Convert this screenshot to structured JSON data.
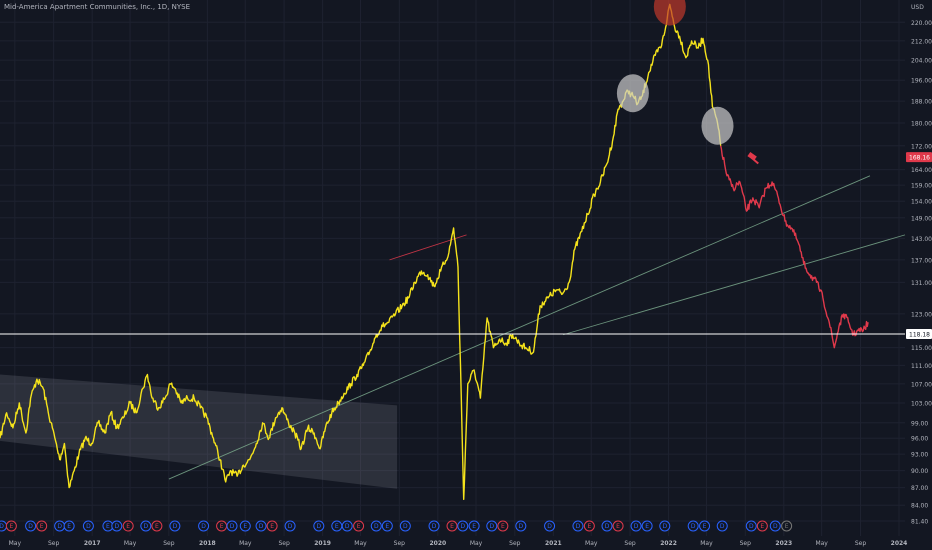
{
  "chart_data": {
    "type": "line",
    "title": "Mid-America Apartment Communities, Inc., 1D, NYSE",
    "currency": "USD",
    "y_scale": "log",
    "ylim": [
      79.0,
      230.0
    ],
    "xlim": [
      "2016-03-15",
      "2024-01-20"
    ],
    "y_ticks": [
      "220.00",
      "212.00",
      "204.00",
      "196.00",
      "188.00",
      "180.00",
      "172.00",
      "164.00",
      "159.00",
      "154.00",
      "149.00",
      "143.00",
      "137.00",
      "131.00",
      "123.00",
      "115.00",
      "111.00",
      "107.00",
      "103.00",
      "99.00",
      "96.00",
      "93.00",
      "90.00",
      "87.00",
      "84.00",
      "81.40"
    ],
    "x_ticks": [
      {
        "label": "May",
        "date": "2016-05-01"
      },
      {
        "label": "Sep",
        "date": "2016-09-01"
      },
      {
        "label": "2017",
        "date": "2017-01-01"
      },
      {
        "label": "May",
        "date": "2017-05-01"
      },
      {
        "label": "Sep",
        "date": "2017-09-01"
      },
      {
        "label": "2018",
        "date": "2018-01-01"
      },
      {
        "label": "May",
        "date": "2018-05-01"
      },
      {
        "label": "Sep",
        "date": "2018-09-01"
      },
      {
        "label": "2019",
        "date": "2019-01-01"
      },
      {
        "label": "May",
        "date": "2019-05-01"
      },
      {
        "label": "Sep",
        "date": "2019-09-01"
      },
      {
        "label": "2020",
        "date": "2020-01-01"
      },
      {
        "label": "May",
        "date": "2020-05-01"
      },
      {
        "label": "Sep",
        "date": "2020-09-01"
      },
      {
        "label": "2021",
        "date": "2021-01-01"
      },
      {
        "label": "May",
        "date": "2021-05-01"
      },
      {
        "label": "Sep",
        "date": "2021-09-01"
      },
      {
        "label": "2022",
        "date": "2022-01-01"
      },
      {
        "label": "May",
        "date": "2022-05-01"
      },
      {
        "label": "Sep",
        "date": "2022-09-01"
      },
      {
        "label": "2023",
        "date": "2023-01-01"
      },
      {
        "label": "May",
        "date": "2023-05-01"
      },
      {
        "label": "Sep",
        "date": "2023-09-01"
      },
      {
        "label": "2024",
        "date": "2024-01-01"
      }
    ],
    "series": [
      {
        "color": "#f5e31b",
        "points": [
          [
            "2016-03-15",
            96
          ],
          [
            "2016-04-05",
            101
          ],
          [
            "2016-04-25",
            98
          ],
          [
            "2016-05-15",
            103
          ],
          [
            "2016-06-05",
            97
          ],
          [
            "2016-06-20",
            104
          ],
          [
            "2016-07-10",
            108
          ],
          [
            "2016-07-30",
            106
          ],
          [
            "2016-08-15",
            101
          ],
          [
            "2016-09-05",
            96
          ],
          [
            "2016-09-20",
            92
          ],
          [
            "2016-10-05",
            95
          ],
          [
            "2016-10-20",
            87
          ],
          [
            "2016-11-05",
            90
          ],
          [
            "2016-11-20",
            93
          ],
          [
            "2016-12-10",
            96
          ],
          [
            "2016-12-30",
            95
          ],
          [
            "2017-01-20",
            99
          ],
          [
            "2017-02-10",
            97
          ],
          [
            "2017-03-01",
            101
          ],
          [
            "2017-03-20",
            98
          ],
          [
            "2017-04-10",
            100
          ],
          [
            "2017-05-01",
            103
          ],
          [
            "2017-05-20",
            101
          ],
          [
            "2017-06-10",
            106
          ],
          [
            "2017-06-25",
            109
          ],
          [
            "2017-07-10",
            104
          ],
          [
            "2017-07-30",
            102
          ],
          [
            "2017-08-20",
            104
          ],
          [
            "2017-09-05",
            107
          ],
          [
            "2017-09-20",
            106
          ],
          [
            "2017-10-10",
            103
          ],
          [
            "2017-10-30",
            104
          ],
          [
            "2017-11-20",
            104
          ],
          [
            "2017-12-10",
            102
          ],
          [
            "2017-12-30",
            100
          ],
          [
            "2018-01-20",
            96
          ],
          [
            "2018-02-10",
            92
          ],
          [
            "2018-02-28",
            88
          ],
          [
            "2018-03-15",
            90
          ],
          [
            "2018-04-05",
            89
          ],
          [
            "2018-04-25",
            91
          ],
          [
            "2018-05-15",
            92
          ],
          [
            "2018-06-05",
            95
          ],
          [
            "2018-06-25",
            99
          ],
          [
            "2018-07-15",
            96
          ],
          [
            "2018-08-05",
            100
          ],
          [
            "2018-08-25",
            102
          ],
          [
            "2018-09-15",
            99
          ],
          [
            "2018-10-05",
            97
          ],
          [
            "2018-10-25",
            94
          ],
          [
            "2018-11-15",
            98
          ],
          [
            "2018-12-05",
            97
          ],
          [
            "2018-12-24",
            94
          ],
          [
            "2019-01-10",
            98
          ],
          [
            "2019-01-30",
            101
          ],
          [
            "2019-02-20",
            103
          ],
          [
            "2019-03-10",
            105
          ],
          [
            "2019-04-01",
            107
          ],
          [
            "2019-04-20",
            109
          ],
          [
            "2019-05-10",
            111
          ],
          [
            "2019-05-30",
            114
          ],
          [
            "2019-06-20",
            118
          ],
          [
            "2019-07-10",
            120
          ],
          [
            "2019-07-30",
            121
          ],
          [
            "2019-08-20",
            123
          ],
          [
            "2019-09-10",
            125
          ],
          [
            "2019-09-30",
            127
          ],
          [
            "2019-10-20",
            131
          ],
          [
            "2019-11-10",
            134
          ],
          [
            "2019-11-30",
            133
          ],
          [
            "2019-12-20",
            130
          ],
          [
            "2020-01-10",
            134
          ],
          [
            "2020-02-05",
            139
          ],
          [
            "2020-02-20",
            146
          ],
          [
            "2020-03-05",
            135
          ],
          [
            "2020-03-23",
            85
          ],
          [
            "2020-04-05",
            107
          ],
          [
            "2020-04-25",
            110
          ],
          [
            "2020-05-15",
            104
          ],
          [
            "2020-06-05",
            122
          ],
          [
            "2020-06-25",
            115
          ],
          [
            "2020-07-15",
            117
          ],
          [
            "2020-08-05",
            116
          ],
          [
            "2020-08-25",
            118
          ],
          [
            "2020-09-15",
            116
          ],
          [
            "2020-10-05",
            115
          ],
          [
            "2020-10-30",
            114
          ],
          [
            "2020-11-20",
            125
          ],
          [
            "2020-12-15",
            127
          ],
          [
            "2021-01-10",
            129
          ],
          [
            "2021-01-30",
            128
          ],
          [
            "2021-02-20",
            131
          ],
          [
            "2021-03-10",
            140
          ],
          [
            "2021-04-01",
            145
          ],
          [
            "2021-04-20",
            150
          ],
          [
            "2021-05-10",
            156
          ],
          [
            "2021-05-30",
            160
          ],
          [
            "2021-06-20",
            166
          ],
          [
            "2021-07-10",
            175
          ],
          [
            "2021-07-25",
            185
          ],
          [
            "2021-08-10",
            188
          ],
          [
            "2021-08-25",
            192
          ],
          [
            "2021-09-10",
            190
          ],
          [
            "2021-09-25",
            187
          ],
          [
            "2021-10-10",
            190
          ],
          [
            "2021-10-30",
            199
          ],
          [
            "2021-11-20",
            206
          ],
          [
            "2021-12-10",
            210
          ],
          [
            "2021-12-28",
            222
          ],
          [
            "2022-01-05",
            228
          ],
          [
            "2022-01-20",
            218
          ],
          [
            "2022-02-05",
            214
          ],
          [
            "2022-02-25",
            205
          ],
          [
            "2022-03-15",
            212
          ],
          [
            "2022-04-05",
            209
          ],
          [
            "2022-04-20",
            213
          ],
          [
            "2022-05-05",
            204
          ],
          [
            "2022-05-20",
            186
          ],
          [
            "2022-06-05",
            180
          ],
          [
            "2022-06-15",
            172
          ]
        ]
      },
      {
        "color": "#e0394b",
        "points": [
          [
            "2022-06-15",
            172
          ],
          [
            "2022-07-05",
            162
          ],
          [
            "2022-07-25",
            158
          ],
          [
            "2022-08-15",
            160
          ],
          [
            "2022-09-05",
            151
          ],
          [
            "2022-09-25",
            155
          ],
          [
            "2022-10-15",
            152
          ],
          [
            "2022-11-05",
            158
          ],
          [
            "2022-11-25",
            160
          ],
          [
            "2022-12-15",
            155
          ],
          [
            "2023-01-05",
            148
          ],
          [
            "2023-01-25",
            146
          ],
          [
            "2023-02-15",
            142
          ],
          [
            "2023-03-05",
            136
          ],
          [
            "2023-03-25",
            133
          ],
          [
            "2023-04-15",
            131
          ],
          [
            "2023-05-05",
            127
          ],
          [
            "2023-05-25",
            121
          ],
          [
            "2023-06-10",
            115
          ],
          [
            "2023-06-25",
            120
          ],
          [
            "2023-07-10",
            123
          ],
          [
            "2023-07-25",
            121
          ],
          [
            "2023-08-10",
            118
          ],
          [
            "2023-08-25",
            119
          ],
          [
            "2023-09-10",
            119
          ],
          [
            "2023-09-25",
            121
          ]
        ]
      }
    ],
    "price_labels": [
      {
        "text": "168.16",
        "value": 168.16,
        "color": "#e0394b"
      },
      {
        "text": "118.18",
        "value": 118.18,
        "color": "#ffffff"
      }
    ],
    "horizontal_line": {
      "value": 118.18,
      "color": "#ffffff"
    },
    "trend_lines": [
      {
        "from": [
          "2017-09-01",
          88.5
        ],
        "to": [
          "2023-10-01",
          162
        ],
        "color": "#7aa88c"
      },
      {
        "from": [
          "2021-02-01",
          118
        ],
        "to": [
          "2024-01-20",
          144
        ],
        "color": "#7aa88c"
      },
      {
        "from": [
          "2019-08-01",
          137
        ],
        "to": [
          "2020-04-01",
          144
        ],
        "color": "#e0394b"
      }
    ],
    "channel_polygon": [
      [
        "2016-03-15",
        109
      ],
      [
        "2019-08-25",
        102.5
      ],
      [
        "2019-08-25",
        86.8
      ],
      [
        "2016-03-15",
        95.5
      ]
    ],
    "circles": [
      {
        "center": [
          "2022-01-05",
          227
        ],
        "color": "#c0392b"
      },
      {
        "center": [
          "2021-09-10",
          191
        ],
        "color": "#cccccc"
      },
      {
        "center": [
          "2022-06-05",
          179
        ],
        "color": "#cccccc"
      }
    ],
    "events": [
      {
        "date": "2016-03-20",
        "label": "D",
        "color": "#2962ff"
      },
      {
        "date": "2016-04-20",
        "label": "E",
        "color": "#e0394b"
      },
      {
        "date": "2016-06-20",
        "label": "D",
        "color": "#2962ff"
      },
      {
        "date": "2016-07-25",
        "label": "E",
        "color": "#e0394b"
      },
      {
        "date": "2016-09-20",
        "label": "D",
        "color": "#2962ff"
      },
      {
        "date": "2016-10-20",
        "label": "E",
        "color": "#2962ff"
      },
      {
        "date": "2016-12-20",
        "label": "D",
        "color": "#2962ff"
      },
      {
        "date": "2017-02-20",
        "label": "E",
        "color": "#2962ff"
      },
      {
        "date": "2017-03-20",
        "label": "D",
        "color": "#2962ff"
      },
      {
        "date": "2017-04-25",
        "label": "E",
        "color": "#e0394b"
      },
      {
        "date": "2017-06-20",
        "label": "D",
        "color": "#2962ff"
      },
      {
        "date": "2017-07-25",
        "label": "E",
        "color": "#e0394b"
      },
      {
        "date": "2017-09-20",
        "label": "D",
        "color": "#2962ff"
      },
      {
        "date": "2017-12-20",
        "label": "D",
        "color": "#2962ff"
      },
      {
        "date": "2018-02-15",
        "label": "E",
        "color": "#e0394b"
      },
      {
        "date": "2018-03-20",
        "label": "D",
        "color": "#2962ff"
      },
      {
        "date": "2018-05-01",
        "label": "E",
        "color": "#2962ff"
      },
      {
        "date": "2018-06-20",
        "label": "D",
        "color": "#2962ff"
      },
      {
        "date": "2018-07-25",
        "label": "E",
        "color": "#e0394b"
      },
      {
        "date": "2018-09-20",
        "label": "D",
        "color": "#2962ff"
      },
      {
        "date": "2018-12-20",
        "label": "D",
        "color": "#2962ff"
      },
      {
        "date": "2019-02-15",
        "label": "E",
        "color": "#2962ff"
      },
      {
        "date": "2019-03-20",
        "label": "D",
        "color": "#2962ff"
      },
      {
        "date": "2019-04-25",
        "label": "E",
        "color": "#e0394b"
      },
      {
        "date": "2019-06-20",
        "label": "D",
        "color": "#2962ff"
      },
      {
        "date": "2019-07-25",
        "label": "E",
        "color": "#2962ff"
      },
      {
        "date": "2019-09-20",
        "label": "D",
        "color": "#2962ff"
      },
      {
        "date": "2019-12-20",
        "label": "D",
        "color": "#2962ff"
      },
      {
        "date": "2020-02-15",
        "label": "E",
        "color": "#e0394b"
      },
      {
        "date": "2020-03-20",
        "label": "D",
        "color": "#2962ff"
      },
      {
        "date": "2020-04-25",
        "label": "E",
        "color": "#2962ff"
      },
      {
        "date": "2020-06-20",
        "label": "D",
        "color": "#2962ff"
      },
      {
        "date": "2020-07-25",
        "label": "E",
        "color": "#e0394b"
      },
      {
        "date": "2020-09-20",
        "label": "D",
        "color": "#2962ff"
      },
      {
        "date": "2020-12-20",
        "label": "D",
        "color": "#2962ff"
      },
      {
        "date": "2021-03-20",
        "label": "D",
        "color": "#2962ff"
      },
      {
        "date": "2021-04-25",
        "label": "E",
        "color": "#e0394b"
      },
      {
        "date": "2021-06-20",
        "label": "D",
        "color": "#2962ff"
      },
      {
        "date": "2021-07-25",
        "label": "E",
        "color": "#e0394b"
      },
      {
        "date": "2021-09-20",
        "label": "D",
        "color": "#2962ff"
      },
      {
        "date": "2021-10-25",
        "label": "E",
        "color": "#2962ff"
      },
      {
        "date": "2021-12-20",
        "label": "D",
        "color": "#2962ff"
      },
      {
        "date": "2022-03-20",
        "label": "D",
        "color": "#2962ff"
      },
      {
        "date": "2022-04-25",
        "label": "E",
        "color": "#2962ff"
      },
      {
        "date": "2022-06-20",
        "label": "D",
        "color": "#2962ff"
      },
      {
        "date": "2022-09-20",
        "label": "D",
        "color": "#2962ff"
      },
      {
        "date": "2022-10-25",
        "label": "E",
        "color": "#e0394b"
      },
      {
        "date": "2022-12-05",
        "label": "D",
        "color": "#2962ff"
      },
      {
        "date": "2023-01-10",
        "label": "E",
        "color": "#777777"
      }
    ]
  }
}
